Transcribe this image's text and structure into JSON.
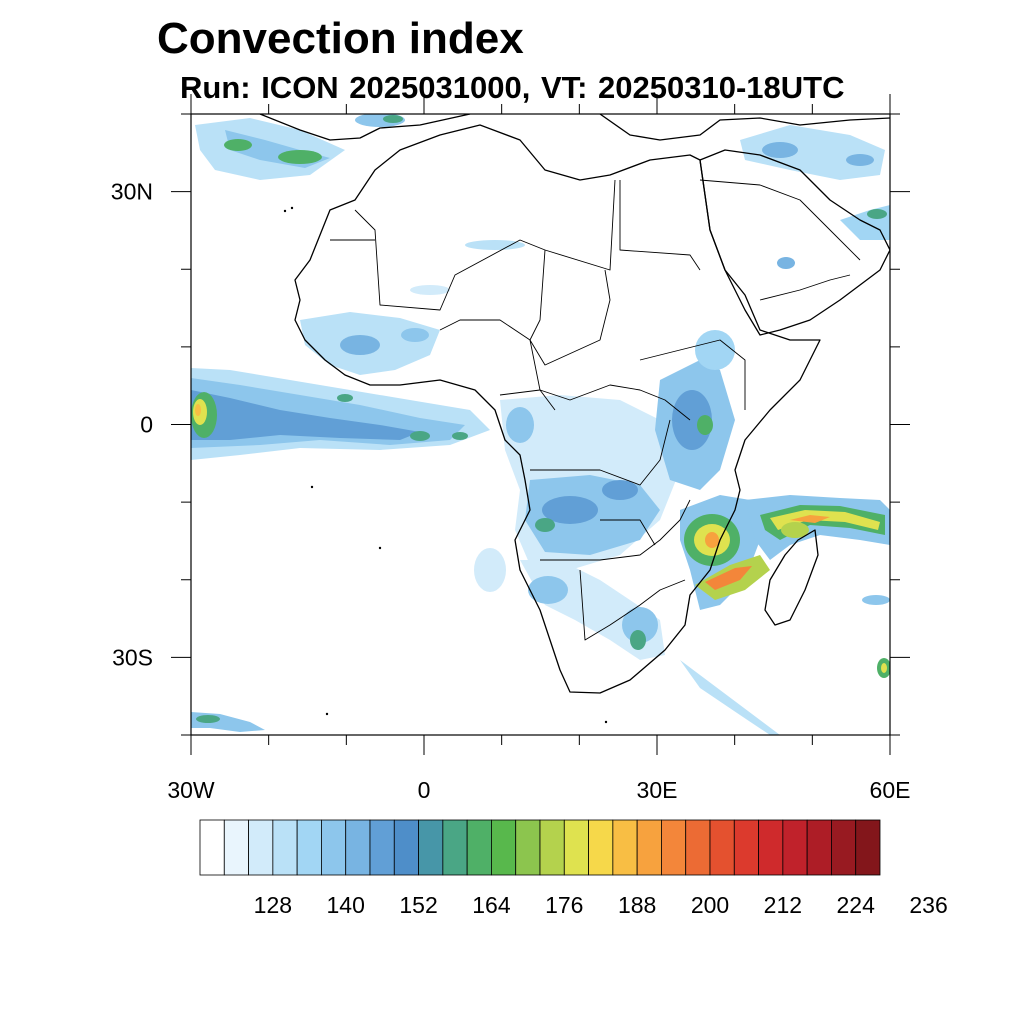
{
  "title": "Convection index",
  "subtitle": "Run: ICON 2025031000,  VT: 20250310-18UTC",
  "map": {
    "lon_range": [
      -30,
      60
    ],
    "lat_range": [
      -40,
      40
    ],
    "lat_ticks": [
      {
        "value": 30,
        "label": "30N"
      },
      {
        "value": 0,
        "label": "0"
      },
      {
        "value": -30,
        "label": "30S"
      }
    ],
    "lon_ticks": [
      {
        "value": -30,
        "label": "30W"
      },
      {
        "value": 0,
        "label": "0"
      },
      {
        "value": 30,
        "label": "30E"
      },
      {
        "value": 60,
        "label": "60E"
      }
    ]
  },
  "colorbar": {
    "colors": [
      "#ffffff",
      "#e9f5fd",
      "#d2ebfa",
      "#bae1f7",
      "#a2d6f4",
      "#8dc6ec",
      "#78b4e2",
      "#619fd6",
      "#4e8ec9",
      "#4796a8",
      "#4aa685",
      "#4fb067",
      "#58b84c",
      "#8cc54e",
      "#b4d24d",
      "#dfe24f",
      "#f6d84a",
      "#f8be44",
      "#f7a23e",
      "#f3863a",
      "#ec6b34",
      "#e4512f",
      "#dc3a2d",
      "#cf2a2c",
      "#c0222b",
      "#ad1d26",
      "#981a21",
      "#83161b"
    ],
    "labels": [
      "128",
      "140",
      "152",
      "164",
      "176",
      "188",
      "200",
      "212",
      "224",
      "236"
    ]
  }
}
